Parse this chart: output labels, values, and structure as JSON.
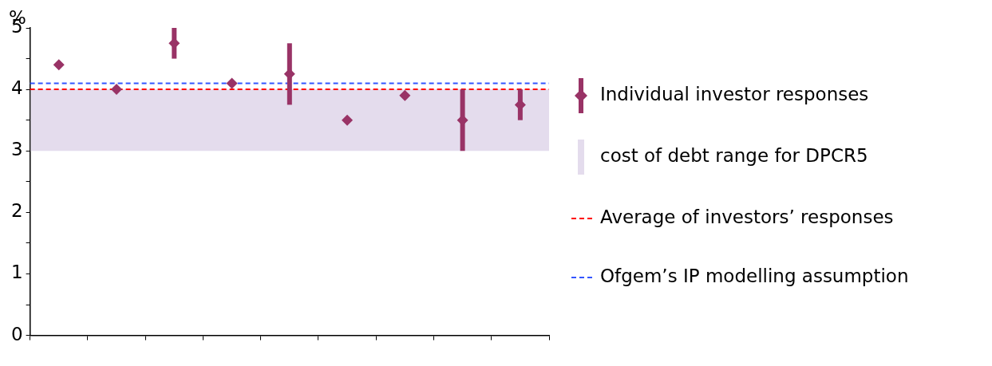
{
  "chart_data": {
    "type": "scatter",
    "ylabel": "%",
    "categories": [
      null,
      null,
      null,
      null,
      null,
      null,
      null,
      null,
      null
    ],
    "series": [
      {
        "name": "Individual investor responses",
        "color": "#993366",
        "values": [
          4.4,
          4.0,
          4.75,
          4.1,
          4.25,
          3.5,
          3.9,
          3.5,
          3.75
        ],
        "errors": [
          null,
          null,
          [
            4.5,
            5.0
          ],
          null,
          [
            3.75,
            4.75
          ],
          null,
          null,
          [
            3.0,
            4.0
          ],
          [
            3.5,
            4.0
          ]
        ]
      }
    ],
    "bands": [
      {
        "axis": "y",
        "from": 3,
        "to": 4,
        "label": "cost of debt range for DPCR5",
        "color": "#e4dced"
      }
    ],
    "ref_lines": [
      {
        "axis": "y",
        "value": 4.0,
        "label": "Average of investors’ responses",
        "color": "#ff0000",
        "line_style": "dashed"
      },
      {
        "axis": "y",
        "value": 4.1,
        "label": "Ofgem’s IP modelling assumption",
        "color": "#3355ff",
        "line_style": "dashed"
      }
    ],
    "ylim": [
      0,
      5
    ],
    "yticks": [
      0,
      {
        "value": 0.5,
        "label": null
      },
      1,
      {
        "value": 1.5,
        "label": null
      },
      2,
      {
        "value": 2.5,
        "label": null
      },
      3,
      {
        "value": 3.5,
        "label": null
      },
      4,
      {
        "value": 4.5,
        "label": null
      },
      5
    ],
    "marker": "diamond",
    "grid": false,
    "legend": "right"
  }
}
